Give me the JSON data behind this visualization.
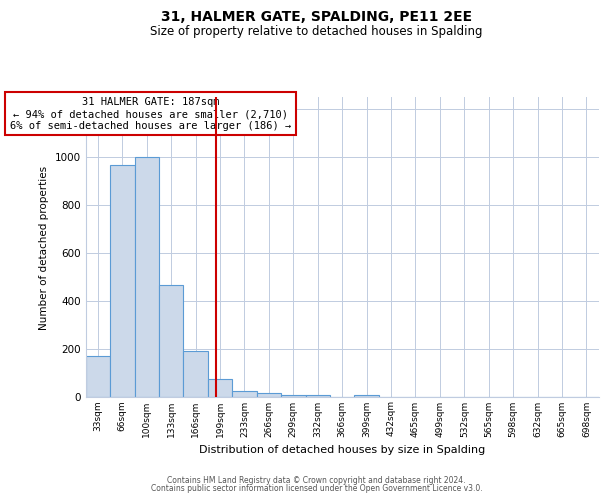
{
  "title": "31, HALMER GATE, SPALDING, PE11 2EE",
  "subtitle": "Size of property relative to detached houses in Spalding",
  "xlabel": "Distribution of detached houses by size in Spalding",
  "ylabel": "Number of detached properties",
  "bin_labels": [
    "33sqm",
    "66sqm",
    "100sqm",
    "133sqm",
    "166sqm",
    "199sqm",
    "233sqm",
    "266sqm",
    "299sqm",
    "332sqm",
    "366sqm",
    "399sqm",
    "432sqm",
    "465sqm",
    "499sqm",
    "532sqm",
    "565sqm",
    "598sqm",
    "632sqm",
    "665sqm",
    "698sqm"
  ],
  "bar_heights": [
    170,
    965,
    1000,
    465,
    190,
    75,
    25,
    15,
    10,
    10,
    0,
    10,
    0,
    0,
    0,
    0,
    0,
    0,
    0,
    0,
    0
  ],
  "bar_color": "#ccd9ea",
  "bar_edge_color": "#5b9bd5",
  "red_line_x": 4.82,
  "red_line_color": "#cc0000",
  "ylim": [
    0,
    1250
  ],
  "yticks": [
    0,
    200,
    400,
    600,
    800,
    1000,
    1200
  ],
  "annotation_box_text": "31 HALMER GATE: 187sqm\n← 94% of detached houses are smaller (2,710)\n6% of semi-detached houses are larger (186) →",
  "bg_color": "#ffffff",
  "grid_color": "#c0cce0",
  "footer_line1": "Contains HM Land Registry data © Crown copyright and database right 2024.",
  "footer_line2": "Contains public sector information licensed under the Open Government Licence v3.0.",
  "n_bins": 21
}
